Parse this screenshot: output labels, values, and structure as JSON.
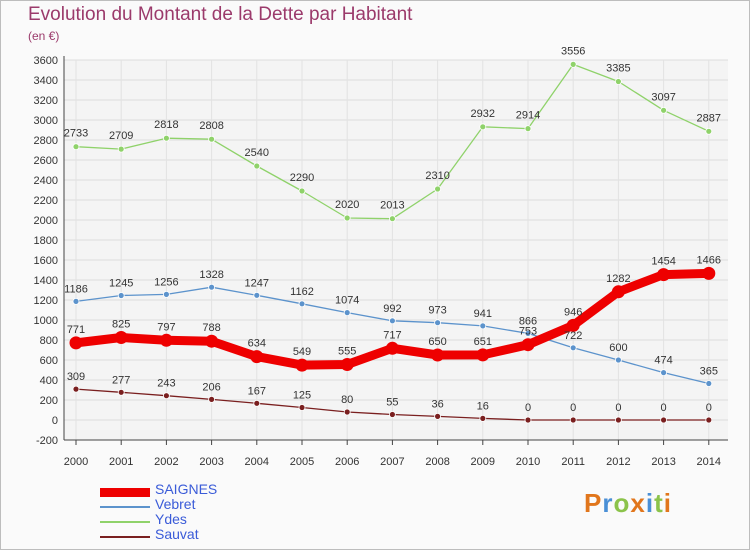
{
  "title": "Evolution du Montant de la Dette par Habitant",
  "subtitle": "(en €)",
  "logo": {
    "text": "Proxiti",
    "colors": [
      "#e1761c",
      "#4a8fd6",
      "#8bc34a"
    ]
  },
  "legend_position": "bottom-left",
  "chart_data": {
    "type": "line",
    "title": "Evolution du Montant de la Dette par Habitant",
    "subtitle": "(en €)",
    "xlabel": "",
    "ylabel": "",
    "ylim": [
      -200,
      3600
    ],
    "y_ticks": [
      -200,
      0,
      200,
      400,
      600,
      800,
      1000,
      1200,
      1400,
      1600,
      1800,
      2000,
      2200,
      2400,
      2600,
      2800,
      3000,
      3200,
      3400,
      3600
    ],
    "x": [
      "2000",
      "2001",
      "2002",
      "2003",
      "2004",
      "2005",
      "2006",
      "2007",
      "2008",
      "2009",
      "2010",
      "2011",
      "2012",
      "2013",
      "2014"
    ],
    "grid": true,
    "series": [
      {
        "name": "SAIGNES",
        "color": "#ee0000",
        "values": [
          771,
          825,
          797,
          788,
          634,
          549,
          555,
          717,
          650,
          651,
          753,
          946,
          1282,
          1454,
          1466
        ]
      },
      {
        "name": "Vebret",
        "color": "#5c93cc",
        "values": [
          1186,
          1245,
          1256,
          1328,
          1247,
          1162,
          1074,
          992,
          973,
          941,
          866,
          722,
          600,
          474,
          365
        ]
      },
      {
        "name": "Ydes",
        "color": "#8fd26a",
        "values": [
          2733,
          2709,
          2818,
          2808,
          2540,
          2290,
          2020,
          2013,
          2310,
          2932,
          2914,
          3556,
          3385,
          3097,
          2887
        ]
      },
      {
        "name": "Sauvat",
        "color": "#7a1f1f",
        "values": [
          309,
          277,
          243,
          206,
          167,
          125,
          80,
          55,
          36,
          16,
          0,
          0,
          0,
          0,
          0
        ]
      }
    ]
  }
}
